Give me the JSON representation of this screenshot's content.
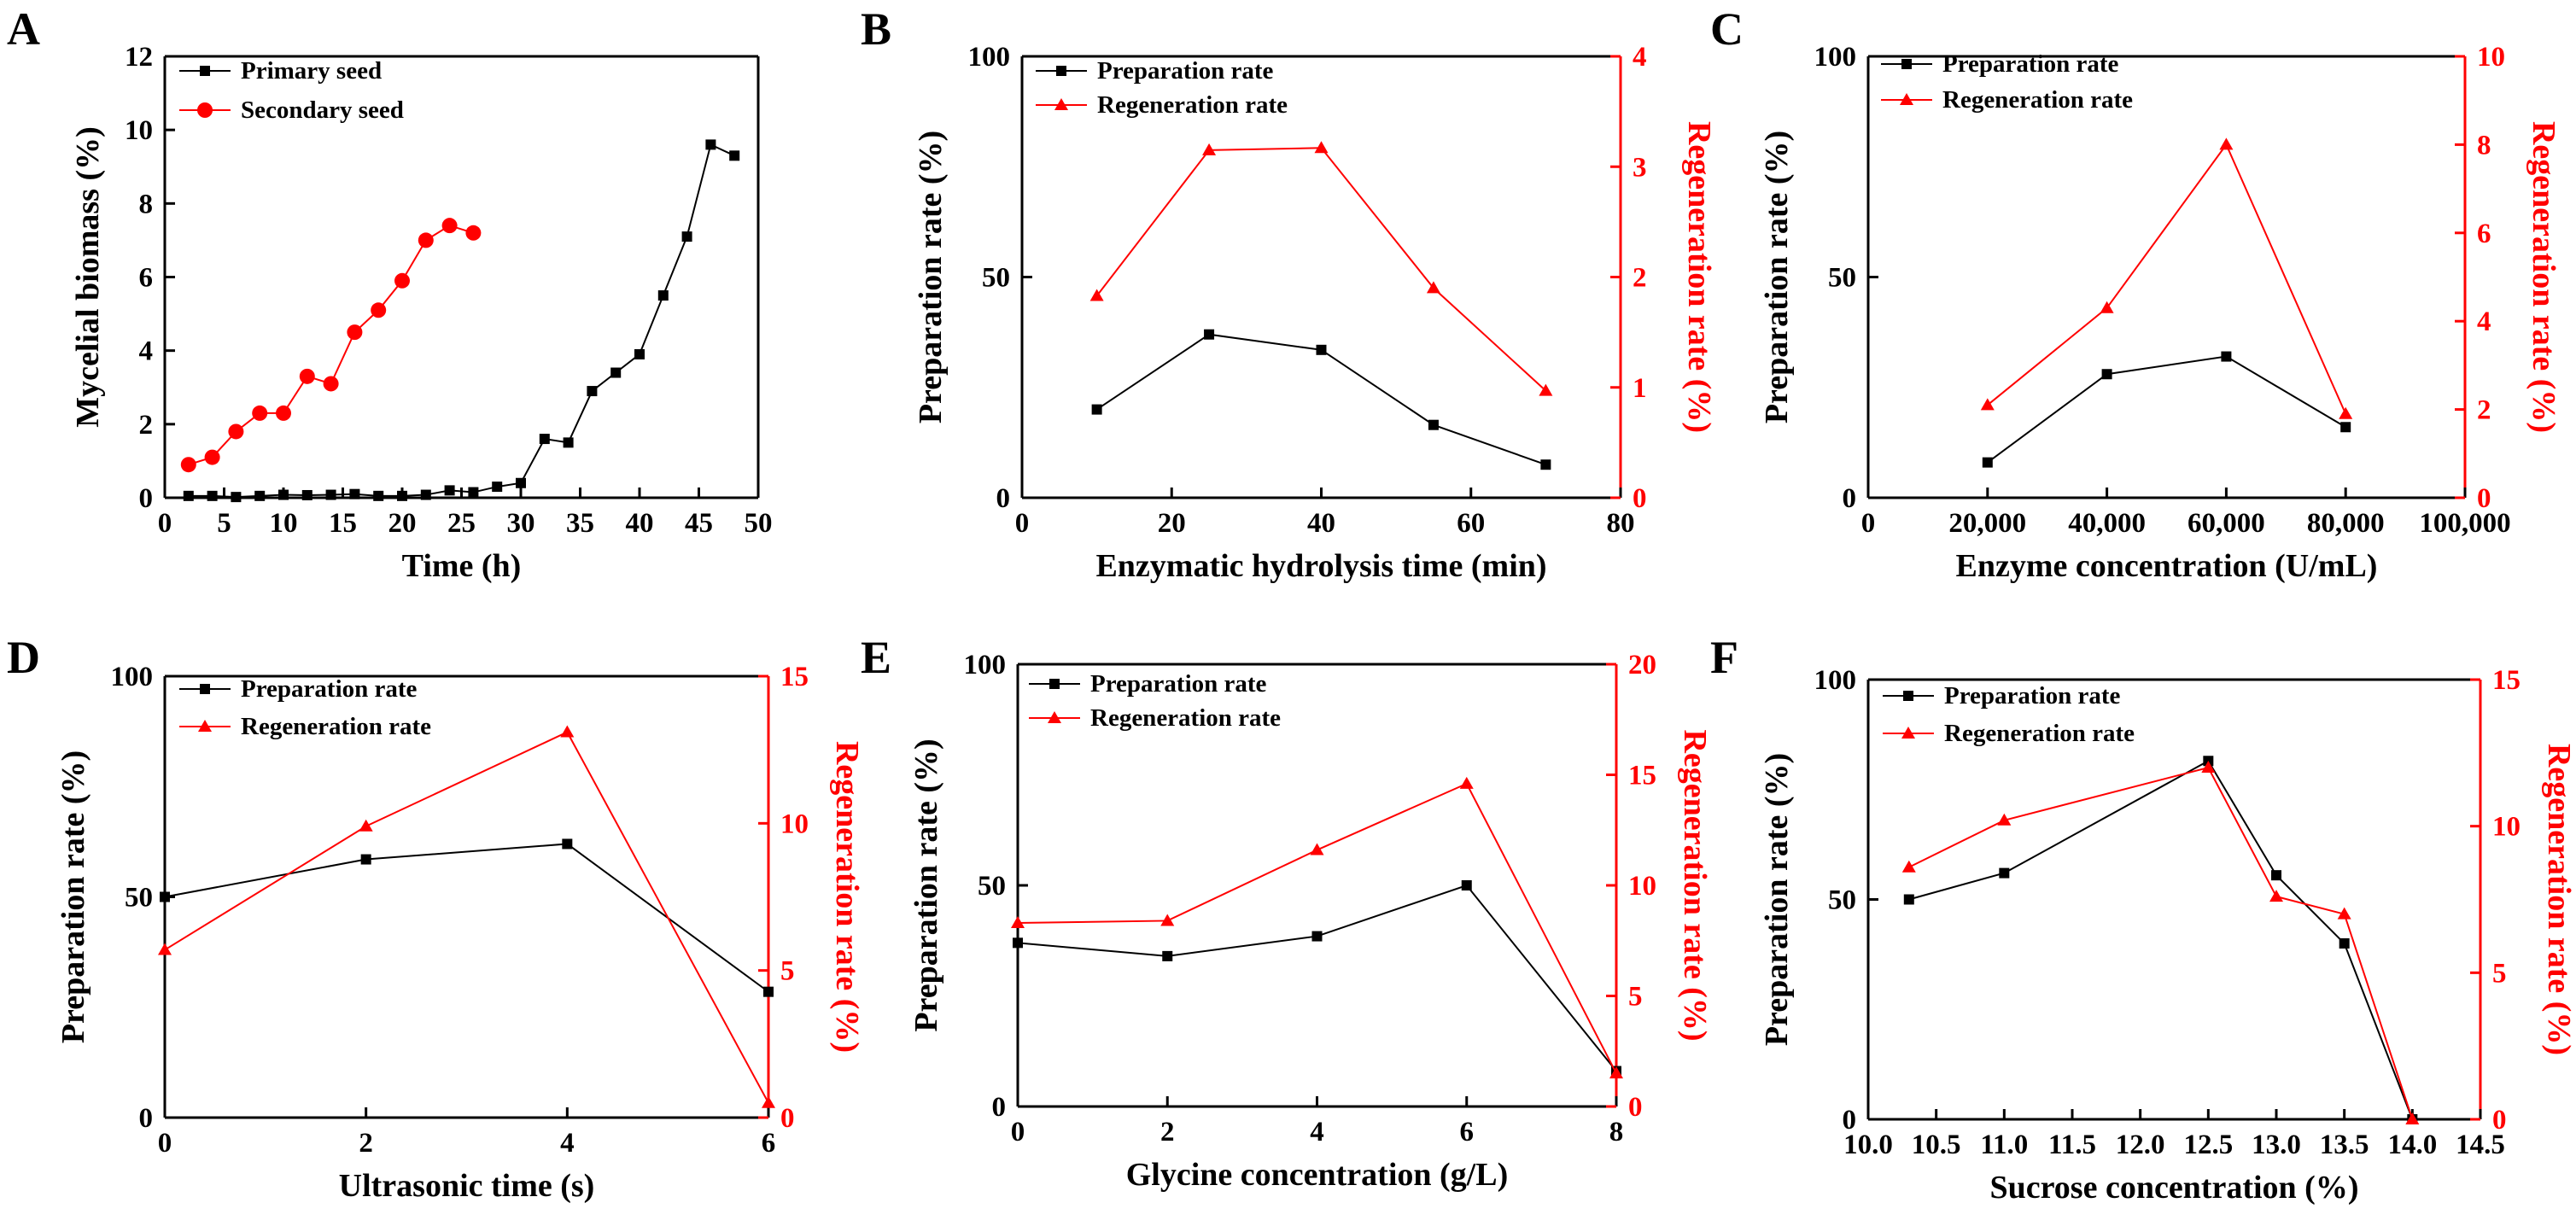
{
  "chart_data": [
    {
      "panel": "A",
      "type": "line",
      "xlabel": "Time (h)",
      "ylabel": "Mycelial biomass (%)",
      "xlim": [
        0,
        50
      ],
      "ylim": [
        0,
        12
      ],
      "xticks": [
        0,
        5,
        10,
        15,
        20,
        25,
        30,
        35,
        40,
        45,
        50
      ],
      "xtick_labels": [
        "0",
        "5",
        "10",
        "15",
        "20",
        "25",
        "30",
        "35",
        "40",
        "45",
        "50"
      ],
      "yticks": [
        0,
        2,
        4,
        6,
        8,
        10,
        12
      ],
      "ytick_labels": [
        "0",
        "2",
        "4",
        "6",
        "8",
        "10",
        "12"
      ],
      "series": [
        {
          "name": "Primary seed",
          "axis": "left",
          "color": "#000000",
          "marker": "square",
          "x": [
            2,
            4,
            6,
            8,
            10,
            12,
            14,
            16,
            18,
            20,
            22,
            24,
            26,
            28,
            30,
            32,
            34,
            36,
            38,
            40,
            42,
            44,
            46,
            48
          ],
          "y": [
            0.05,
            0.05,
            0.02,
            0.05,
            0.08,
            0.07,
            0.08,
            0.1,
            0.05,
            0.05,
            0.08,
            0.2,
            0.15,
            0.3,
            0.4,
            1.6,
            1.5,
            2.9,
            3.4,
            3.9,
            5.5,
            7.1,
            9.6,
            9.3
          ]
        },
        {
          "name": "Secondary seed",
          "axis": "left",
          "color": "#ff0000",
          "marker": "circle",
          "x": [
            2,
            4,
            6,
            8,
            10,
            12,
            14,
            16,
            18,
            20,
            22,
            24,
            26
          ],
          "y": [
            0.9,
            1.1,
            1.8,
            2.3,
            2.3,
            3.3,
            3.1,
            4.5,
            5.1,
            5.9,
            7.0,
            7.4,
            7.2
          ]
        }
      ]
    },
    {
      "panel": "B",
      "type": "line",
      "xlabel": "Enzymatic hydrolysis time (min)",
      "ylabel": "Preparation rate (%)",
      "ylabel_right": "Regeneration rate (%)",
      "xlim": [
        0,
        80
      ],
      "ylim": [
        0,
        100
      ],
      "ylim_right": [
        0,
        4
      ],
      "xticks": [
        0,
        20,
        40,
        60,
        80
      ],
      "xtick_labels": [
        "0",
        "20",
        "40",
        "60",
        "80"
      ],
      "yticks": [
        0,
        50,
        100
      ],
      "ytick_labels": [
        "0",
        "50",
        "100"
      ],
      "yticks_right": [
        0,
        1,
        2,
        3,
        4
      ],
      "ytick_labels_right": [
        "0",
        "1",
        "2",
        "3",
        "4"
      ],
      "series": [
        {
          "name": "Preparation rate",
          "axis": "left",
          "color": "#000000",
          "marker": "square",
          "x": [
            10,
            25,
            40,
            55,
            70
          ],
          "y": [
            20,
            37,
            33.5,
            16.5,
            7.5
          ]
        },
        {
          "name": "Regeneration rate",
          "axis": "right",
          "color": "#ff0000",
          "marker": "triangle",
          "x": [
            10,
            25,
            40,
            55,
            70
          ],
          "y": [
            1.83,
            3.15,
            3.17,
            1.9,
            0.97
          ]
        }
      ]
    },
    {
      "panel": "C",
      "type": "line",
      "xlabel": "Enzyme concentration (U/mL)",
      "ylabel": "Preparation rate (%)",
      "ylabel_right": "Regeneration rate (%)",
      "xlim": [
        0,
        100000
      ],
      "ylim": [
        0,
        100
      ],
      "ylim_right": [
        0,
        10
      ],
      "xticks": [
        0,
        20000,
        40000,
        60000,
        80000,
        100000
      ],
      "xtick_labels": [
        "0",
        "20,000",
        "40,000",
        "60,000",
        "80,000",
        "100,000"
      ],
      "yticks": [
        0,
        50,
        100
      ],
      "ytick_labels": [
        "0",
        "50",
        "100"
      ],
      "yticks_right": [
        0,
        2,
        4,
        6,
        8,
        10
      ],
      "ytick_labels_right": [
        "0",
        "2",
        "4",
        "6",
        "8",
        "10"
      ],
      "series": [
        {
          "name": "Preparation rate",
          "axis": "left",
          "color": "#000000",
          "marker": "square",
          "x": [
            20000,
            40000,
            60000,
            80000
          ],
          "y": [
            8,
            28,
            32,
            16
          ]
        },
        {
          "name": "Regeneration rate",
          "axis": "right",
          "color": "#ff0000",
          "marker": "triangle",
          "x": [
            20000,
            40000,
            60000,
            80000
          ],
          "y": [
            2.1,
            4.3,
            8.0,
            1.9
          ]
        }
      ]
    },
    {
      "panel": "D",
      "type": "line",
      "xlabel": "Ultrasonic time (s)",
      "ylabel": "Preparation rate (%)",
      "ylabel_right": "Regeneration rate (%)",
      "xlim": [
        0,
        6
      ],
      "ylim": [
        0,
        100
      ],
      "ylim_right": [
        0,
        15
      ],
      "xticks": [
        0,
        2,
        4,
        6
      ],
      "xtick_labels": [
        "0",
        "2",
        "4",
        "6"
      ],
      "yticks": [
        0,
        50,
        100
      ],
      "ytick_labels": [
        "0",
        "50",
        "100"
      ],
      "yticks_right": [
        0,
        5,
        10,
        15
      ],
      "ytick_labels_right": [
        "0",
        "5",
        "10",
        "15"
      ],
      "series": [
        {
          "name": "Preparation rate",
          "axis": "left",
          "color": "#000000",
          "marker": "square",
          "x": [
            0,
            2,
            4,
            6
          ],
          "y": [
            50,
            58.5,
            62,
            28.5
          ]
        },
        {
          "name": "Regeneration rate",
          "axis": "right",
          "color": "#ff0000",
          "marker": "triangle",
          "x": [
            0,
            2,
            4,
            6
          ],
          "y": [
            5.7,
            9.9,
            13.1,
            0.5
          ]
        }
      ]
    },
    {
      "panel": "E",
      "type": "line",
      "xlabel": "Glycine concentration (g/L)",
      "ylabel": "Preparation rate (%)",
      "ylabel_right": "Regeneration rate (%)",
      "xlim": [
        0,
        8
      ],
      "ylim": [
        0,
        100
      ],
      "ylim_right": [
        0,
        20
      ],
      "xticks": [
        0,
        2,
        4,
        6,
        8
      ],
      "xtick_labels": [
        "0",
        "2",
        "4",
        "6",
        "8"
      ],
      "yticks": [
        0,
        50,
        100
      ],
      "ytick_labels": [
        "0",
        "50",
        "100"
      ],
      "yticks_right": [
        0,
        5,
        10,
        15,
        20
      ],
      "ytick_labels_right": [
        "0",
        "5",
        "10",
        "15",
        "20"
      ],
      "series": [
        {
          "name": "Preparation rate",
          "axis": "left",
          "color": "#000000",
          "marker": "square",
          "x": [
            0,
            2,
            4,
            6,
            8
          ],
          "y": [
            37,
            34,
            38.5,
            50,
            8
          ]
        },
        {
          "name": "Regeneration rate",
          "axis": "right",
          "color": "#ff0000",
          "marker": "triangle",
          "x": [
            0,
            2,
            4,
            6,
            8
          ],
          "y": [
            8.3,
            8.4,
            11.6,
            14.6,
            1.5
          ]
        }
      ]
    },
    {
      "panel": "F",
      "type": "line",
      "xlabel": "Sucrose concentration (%)",
      "ylabel": "Preparation rate (%)",
      "ylabel_right": "Regeneration rate (%)",
      "xlim": [
        10.0,
        14.5
      ],
      "ylim": [
        0,
        100
      ],
      "ylim_right": [
        0,
        15
      ],
      "xticks": [
        10.0,
        10.5,
        11.0,
        11.5,
        12.0,
        12.5,
        13.0,
        13.5,
        14.0,
        14.5
      ],
      "xtick_labels": [
        "10.0",
        "10.5",
        "11.0",
        "11.5",
        "12.0",
        "12.5",
        "13.0",
        "13.5",
        "14.0",
        "14.5"
      ],
      "yticks": [
        0,
        50,
        100
      ],
      "ytick_labels": [
        "0",
        "50",
        "100"
      ],
      "yticks_right": [
        0,
        5,
        10,
        15
      ],
      "ytick_labels_right": [
        "0",
        "5",
        "10",
        "15"
      ],
      "series": [
        {
          "name": "Preparation rate",
          "axis": "left",
          "color": "#000000",
          "marker": "square",
          "x": [
            10.3,
            11.0,
            12.5,
            13.0,
            13.5,
            14.0
          ],
          "y": [
            50,
            56,
            81.5,
            55.5,
            40,
            0
          ]
        },
        {
          "name": "Regeneration rate",
          "axis": "right",
          "color": "#ff0000",
          "marker": "triangle",
          "x": [
            10.3,
            11.0,
            12.5,
            13.0,
            13.5,
            14.0
          ],
          "y": [
            8.6,
            10.2,
            12.0,
            7.6,
            7.0,
            0
          ]
        }
      ]
    }
  ]
}
